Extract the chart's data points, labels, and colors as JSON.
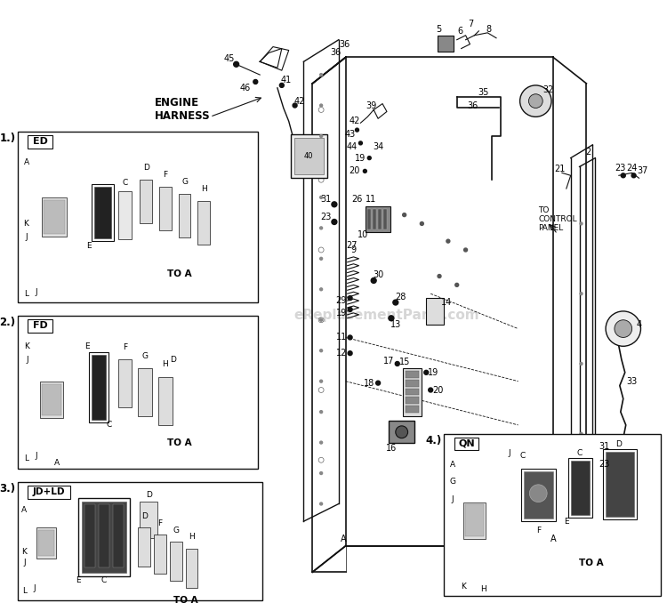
{
  "bg_color": "#ffffff",
  "line_color": "#111111",
  "text_color": "#000000",
  "fig_width": 7.5,
  "fig_height": 6.87,
  "dpi": 100,
  "watermark": "eReplacementParts.com",
  "watermark_color": "#bbbbbb",
  "watermark_alpha": 0.6,
  "engine_harness_text": "ENGINE\nHARNESS",
  "to_control_panel_text": "TO\nCONTROL\nPANEL",
  "to_a_text": "TO A",
  "box1_label": "1.)",
  "box1_title": "ED",
  "box2_label": "2.)",
  "box2_title": "FD",
  "box3_label": "3.)",
  "box3_title": "JD+LD",
  "box4_label": "4.)",
  "box4_title": "QN"
}
